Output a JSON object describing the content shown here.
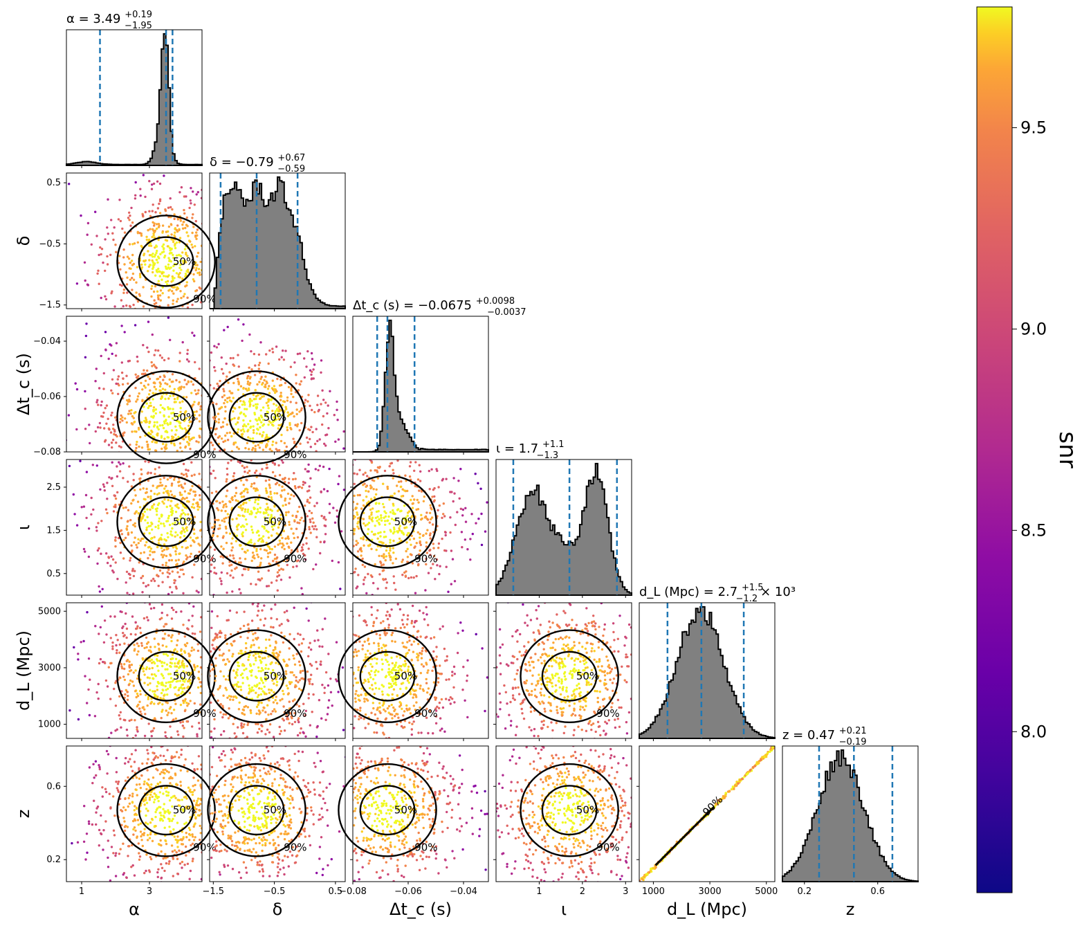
{
  "colorbar": {
    "label": "snr",
    "ticks": [
      "8.0",
      "8.5",
      "9.0",
      "9.5"
    ],
    "tick_values": [
      8.0,
      8.5,
      9.0,
      9.5
    ],
    "range": [
      7.6,
      9.8
    ],
    "colormap": "plasma"
  },
  "colors": {
    "hist_fill": "#808080",
    "hist_edge": "#000000",
    "quantile_line": "#1f77b4",
    "contour": "#000000"
  },
  "params": [
    {
      "key": "alpha",
      "label": "α",
      "min": 0.55,
      "max": 4.55,
      "ticks": [
        1,
        3
      ],
      "tick_labels": [
        "1",
        "3"
      ],
      "peaks": [
        3.35,
        3.55
      ],
      "widths": [
        0.13,
        0.11
      ],
      "amps": [
        1.0,
        0.8
      ]
    },
    {
      "key": "delta",
      "label": "δ",
      "min": -1.56,
      "max": 0.66,
      "ticks": [
        -1.5,
        -0.5,
        0.5
      ],
      "tick_labels": [
        "−1.5",
        "−0.5",
        "0.5"
      ]
    },
    {
      "key": "dtc",
      "label": "Δt_c (s)",
      "min": -0.08,
      "max": -0.031,
      "ticks": [
        -0.08,
        -0.06,
        -0.04
      ],
      "tick_labels": [
        "−0.08",
        "−0.06",
        "−0.04"
      ]
    },
    {
      "key": "iota",
      "label": "ι",
      "min": 0.0,
      "max": 3.14,
      "ticks": [
        0.5,
        1.5,
        2.5
      ],
      "tick_labels": [
        "0.5",
        "1.5",
        "2.5"
      ],
      "xticks": [
        1,
        2,
        3
      ],
      "xtick_labels": [
        "1",
        "2",
        "3"
      ]
    },
    {
      "key": "dl",
      "label": "d_L (Mpc)",
      "min": 500,
      "max": 5300,
      "ticks": [
        1000,
        3000,
        5000
      ],
      "tick_labels": [
        "1000",
        "3000",
        "5000"
      ]
    },
    {
      "key": "z",
      "label": "z",
      "min": 0.08,
      "max": 0.82,
      "ticks": [
        0.2,
        0.6
      ],
      "tick_labels": [
        "0.2",
        "0.6"
      ]
    }
  ],
  "titles": [
    {
      "name": "α",
      "value": "3.49",
      "plus": "+0.19",
      "minus": "−1.95",
      "suffix": ""
    },
    {
      "name": "δ",
      "value": "−0.79",
      "plus": "+0.67",
      "minus": "−0.59",
      "suffix": ""
    },
    {
      "name": "Δt_c (s)",
      "value": "−0.0675",
      "plus": "+0.0098",
      "minus": "−0.0037",
      "suffix": ""
    },
    {
      "name": "ι",
      "value": "1.7",
      "plus": "+1.1",
      "minus": "−1.3",
      "suffix": ""
    },
    {
      "name": "d_L (Mpc)",
      "value": "2.7",
      "plus": "+1.5",
      "minus": "−1.2",
      "suffix": "× 10³"
    },
    {
      "name": "z",
      "value": "0.47",
      "plus": "+0.21",
      "minus": "−0.19",
      "suffix": ""
    }
  ],
  "chart_data": {
    "type": "corner",
    "colorbar_label": "snr",
    "quantile_lines": [
      {
        "param": "α",
        "values": [
          1.54,
          3.49,
          3.68
        ]
      },
      {
        "param": "δ",
        "values": [
          -1.38,
          -0.79,
          -0.12
        ]
      },
      {
        "param": "Δt_c (s)",
        "values": [
          -0.0712,
          -0.0675,
          -0.0577
        ]
      },
      {
        "param": "ι",
        "values": [
          0.4,
          1.7,
          2.8
        ]
      },
      {
        "param": "d_L (Mpc)",
        "values": [
          1500,
          2700,
          4200
        ]
      },
      {
        "param": "z",
        "values": [
          0.28,
          0.47,
          0.68
        ]
      }
    ],
    "marginal_histograms": [
      {
        "param": "α",
        "shape": "sharp peak near 3.5 with small bump near 1"
      },
      {
        "param": "δ",
        "shape": "broad, plateau from -1.5 to -0.4, tail to 0.5"
      },
      {
        "param": "Δt_c (s)",
        "shape": "sharp peak near -0.068, tail to -0.03"
      },
      {
        "param": "ι",
        "shape": "bimodal, peaks near 0.9 and 2.3"
      },
      {
        "param": "d_L (Mpc)",
        "shape": "unimodal, peak near 2600"
      },
      {
        "param": "z",
        "shape": "unimodal, peak near 0.44"
      }
    ],
    "contour_labels": [
      "50%",
      "90%"
    ]
  }
}
